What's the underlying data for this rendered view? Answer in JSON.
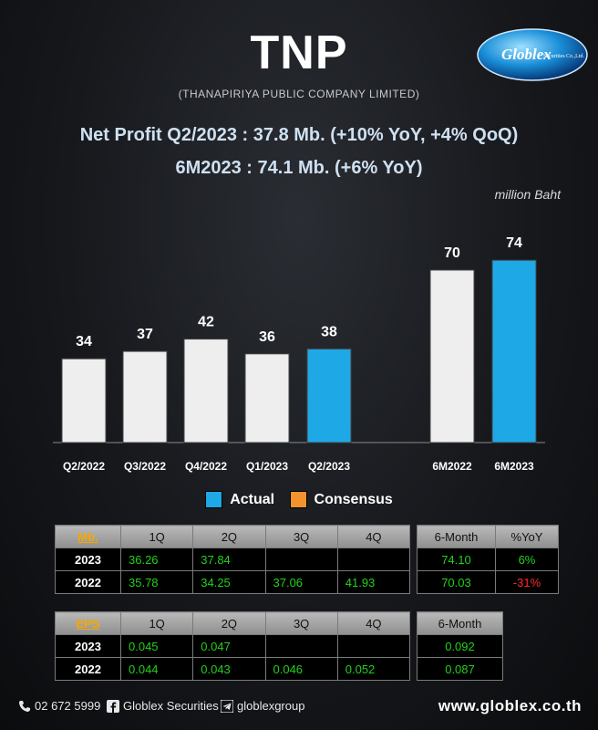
{
  "header": {
    "ticker": "TNP",
    "company": "(THANAPIRIYA PUBLIC COMPANY LIMITED)",
    "logo_text": "Globlex",
    "logo_sub": "Securities Co.,Ltd.",
    "headline1": "Net Profit  Q2/2023 : 37.8 Mb. (+10% YoY, +4% QoQ)",
    "headline2": "6M2023 : 74.1 Mb. (+6% YoY)"
  },
  "chart_data": {
    "type": "bar",
    "unit_label": "million Baht",
    "categories": [
      "Q2/2022",
      "Q3/2022",
      "Q4/2022",
      "Q1/2023",
      "Q2/2023",
      "6M2022",
      "6M2023"
    ],
    "values": [
      34,
      37,
      42,
      36,
      38,
      70,
      74
    ],
    "series_of_bar": [
      "prior",
      "prior",
      "prior",
      "prior",
      "Actual",
      "prior",
      "Actual"
    ],
    "legend": [
      {
        "name": "Actual",
        "color": "#1ea8e6"
      },
      {
        "name": "Consensus",
        "color": "#f2932d"
      }
    ],
    "colors": {
      "prior": "#eeeeee",
      "Actual": "#1ea8e6"
    },
    "ylim": [
      0,
      80
    ],
    "legend_position": "bottom"
  },
  "table_np": {
    "key": "Mb.",
    "headers": [
      "1Q",
      "2Q",
      "3Q",
      "4Q"
    ],
    "rows": [
      {
        "year": "2023",
        "q": [
          "36.26",
          "37.84",
          "",
          ""
        ]
      },
      {
        "year": "2022",
        "q": [
          "35.78",
          "34.25",
          "37.06",
          "41.93"
        ]
      }
    ]
  },
  "table_np_side": {
    "headers": [
      "6-Month",
      "%YoY"
    ],
    "rows": [
      {
        "sixm": "74.10",
        "yoy": "6%"
      },
      {
        "sixm": "70.03",
        "yoy": "-31%"
      }
    ]
  },
  "table_eps": {
    "key": "EPS",
    "headers": [
      "1Q",
      "2Q",
      "3Q",
      "4Q"
    ],
    "rows": [
      {
        "year": "2023",
        "q": [
          "0.045",
          "0.047",
          "",
          ""
        ]
      },
      {
        "year": "2022",
        "q": [
          "0.044",
          "0.043",
          "0.046",
          "0.052"
        ]
      }
    ]
  },
  "table_eps_side": {
    "headers": [
      "6-Month"
    ],
    "rows": [
      {
        "sixm": "0.092"
      },
      {
        "sixm": "0.087"
      }
    ]
  },
  "footer": {
    "phone": "02 672 5999",
    "facebook": "Globlex Securities",
    "telegram": "globlexgroup",
    "website": "www.globlex.co.th"
  }
}
